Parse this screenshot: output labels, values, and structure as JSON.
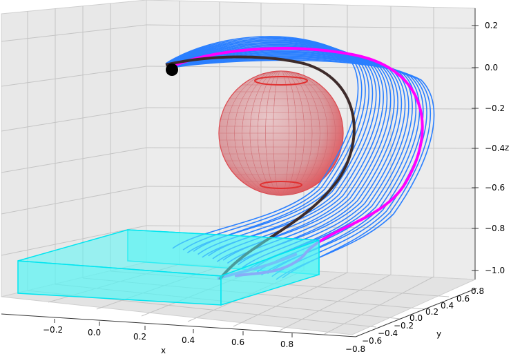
{
  "chart_data": {
    "type": "line3d",
    "title": "",
    "axes": {
      "x": {
        "label": "x",
        "ticks": [
          "−0.2",
          "0.0",
          "0.2",
          "0.4",
          "0.6",
          "0.8"
        ]
      },
      "y": {
        "label": "y",
        "ticks": [
          "−0.8",
          "−0.6",
          "−0.4",
          "−0.2",
          "0.0",
          "0.2",
          "0.4",
          "0.6",
          "0.8"
        ]
      },
      "z": {
        "label": "z",
        "ticks": [
          "0.2",
          "0.0",
          "−0.2",
          "−0.4",
          "−0.6",
          "−0.8",
          "−1.0"
        ]
      }
    },
    "grid": true,
    "colors": {
      "reference_trajectory": "#3d2b2b",
      "highlighted_trajectory": "#ff00ff",
      "sampled_trajectories": "#2a7fff",
      "obstacle_sphere": "#e0393e",
      "goal_region": "#00ffff",
      "start_marker": "#000000",
      "pane": "#ebebeb"
    },
    "series": [
      {
        "role": "reference_trajectory",
        "points": [
          [
            0.12,
            0.0,
            -0.01
          ],
          [
            0.28,
            0.0,
            0.04
          ],
          [
            0.48,
            0.0,
            0.0
          ],
          [
            0.62,
            0.0,
            -0.2
          ],
          [
            0.66,
            0.0,
            -0.45
          ],
          [
            0.6,
            0.0,
            -0.68
          ],
          [
            0.52,
            0.0,
            -0.88
          ],
          [
            0.46,
            0.0,
            -1.0
          ]
        ]
      },
      {
        "role": "highlighted_trajectory",
        "points": [
          [
            0.14,
            0.0,
            -0.02
          ],
          [
            0.35,
            0.0,
            0.05
          ],
          [
            0.56,
            0.0,
            0.0
          ],
          [
            0.72,
            0.0,
            -0.22
          ],
          [
            0.74,
            0.0,
            -0.48
          ],
          [
            0.66,
            0.0,
            -0.72
          ],
          [
            0.56,
            0.0,
            -0.9
          ],
          [
            0.48,
            0.0,
            -1.02
          ]
        ]
      }
    ],
    "sampled_trajectory_count": 22,
    "obstacle": {
      "shape": "sphere",
      "center": [
        0.38,
        0.0,
        -0.35
      ],
      "radius": 0.28
    },
    "goal_region": {
      "shape": "box",
      "x_range": [
        -0.35,
        0.55
      ],
      "y_range": [
        -0.4,
        0.4
      ],
      "z_range": [
        -1.05,
        -0.95
      ]
    },
    "start_point": [
      0.12,
      0.0,
      -0.02
    ]
  }
}
